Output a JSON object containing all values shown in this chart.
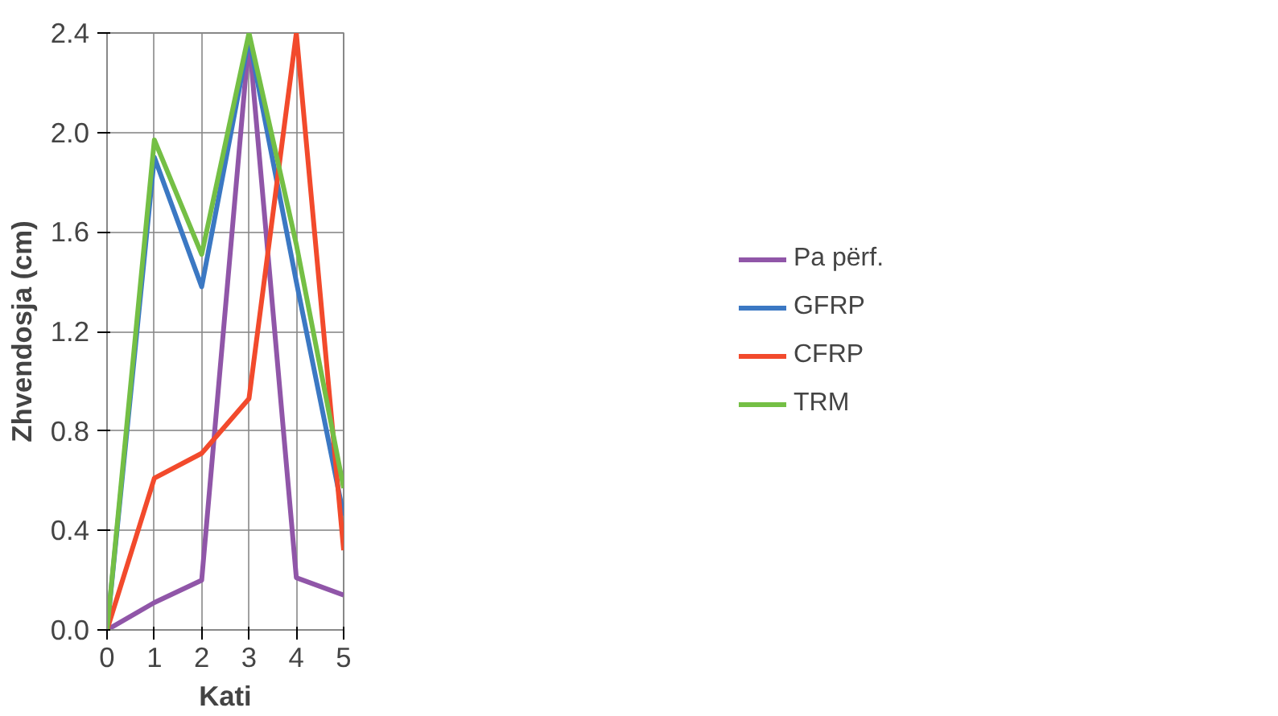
{
  "chart_data": {
    "type": "line",
    "xlabel": "Kati",
    "ylabel": "Zhvendosja (cm)",
    "x": [
      0,
      1,
      2,
      3,
      4,
      5
    ],
    "series": [
      {
        "name": "Pa përf.",
        "color": "#9056a8",
        "values": [
          0,
          0.11,
          0.2,
          2.38,
          0.21,
          0.14
        ]
      },
      {
        "name": "GFRP",
        "color": "#3b78c3",
        "values": [
          0,
          1.9,
          1.38,
          2.38,
          1.4,
          0.46
        ]
      },
      {
        "name": "CFRP",
        "color": "#f24a2c",
        "values": [
          0,
          0.61,
          0.71,
          0.93,
          2.4,
          0.32
        ]
      },
      {
        "name": "TRM",
        "color": "#74bf45",
        "values": [
          0,
          1.97,
          1.51,
          2.4,
          1.55,
          0.57
        ]
      }
    ],
    "xlim": [
      0,
      5
    ],
    "xticks": [
      0,
      1,
      2,
      3,
      4,
      5
    ],
    "ylim": [
      0,
      2.4
    ],
    "yticks": [
      {
        "value": 0,
        "label": "0.0"
      },
      {
        "value": 0.4,
        "label": "0.4"
      },
      {
        "value": 0.8,
        "label": "0.8"
      },
      {
        "value": 1.2,
        "label": "1.2"
      },
      {
        "value": 1.6,
        "label": "1.6"
      },
      {
        "value": 2.0,
        "label": "2.0"
      },
      {
        "value": 2.4,
        "label": "2.4"
      }
    ],
    "grid": true,
    "legend": "right",
    "marker": "none",
    "line_style": "solid"
  }
}
